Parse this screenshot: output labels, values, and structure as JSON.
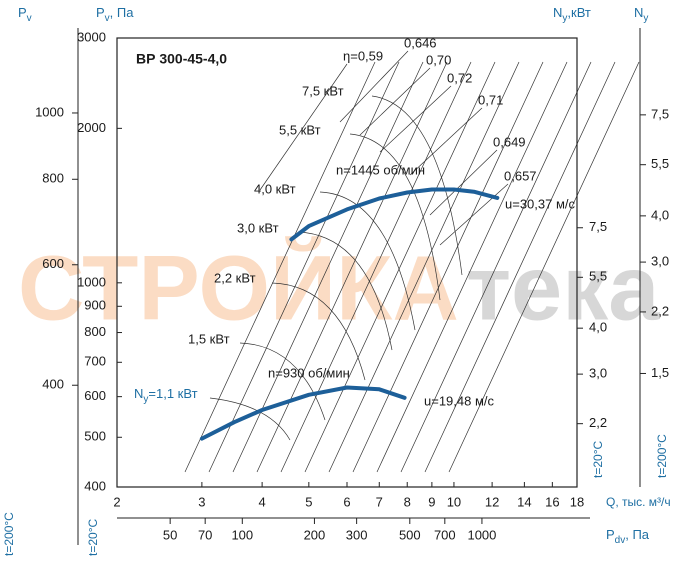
{
  "chart_data": {
    "type": "fan-curve",
    "title": "ВР 300-45-4,0",
    "log_x": true,
    "log_y": true,
    "x_label": "Q, тыс. м³/ч",
    "y_label": {
      "base": "P",
      "sub": "v",
      "rest": ", Па"
    },
    "xlim": [
      2,
      18
    ],
    "xticks": [
      2,
      3,
      4,
      5,
      6,
      7,
      8,
      9,
      10,
      12,
      14,
      16,
      18
    ],
    "ylim": [
      400,
      3000
    ],
    "yticks": [
      400,
      500,
      600,
      700,
      800,
      900,
      1000,
      2000,
      3000
    ],
    "series": [
      {
        "name": "n=1445 об/мин",
        "color": "#1d5f99",
        "speed_label": "u=30,37 м/с",
        "x": [
          4.6,
          5,
          6,
          7,
          8,
          9,
          10,
          11,
          12.3
        ],
        "values": [
          1215,
          1290,
          1390,
          1460,
          1500,
          1520,
          1520,
          1505,
          1464
        ]
      },
      {
        "name": "n=930 об/мин",
        "color": "#1d5f99",
        "speed_label": "u=19,48 м/с",
        "x": [
          3.0,
          3.5,
          4,
          5,
          6,
          7,
          7.9
        ],
        "values": [
          497,
          535,
          565,
          605,
          625,
          620,
          597
        ]
      }
    ],
    "efficiency_labels": [
      "η=0,59",
      "0,646",
      "0,70",
      "0,72",
      "0,71",
      "0,649",
      "0,657"
    ],
    "power_labels": [
      "7,5 кВт",
      "5,5 кВт",
      "4,0 кВт",
      "3,0 кВт",
      "2,2 кВт",
      "1,5 кВт"
    ],
    "power_label_min": {
      "base": "N",
      "sub": "y",
      "rest": "=1,1 кВт"
    },
    "temperature_labels": {
      "t20": "t=20°C",
      "t200": "t=200°C"
    },
    "pv200_axis": {
      "label": {
        "base": "P",
        "sub": "v"
      },
      "lim": [
        284,
        1287
      ],
      "ticks": [
        400,
        600,
        800,
        1000
      ]
    },
    "ny20_axis": {
      "label": {
        "base": "N",
        "sub": "y",
        "rest": ",кВт"
      },
      "lim": [
        1.48,
        24.6
      ],
      "ticks": [
        {
          "value": 2.2,
          "label": "2,2"
        },
        {
          "value": 3.0,
          "label": "3,0"
        },
        {
          "value": 4.0,
          "label": "4,0"
        },
        {
          "value": 5.5,
          "label": "5,5"
        },
        {
          "value": 7.5,
          "label": "7,5"
        }
      ]
    },
    "ny200_axis": {
      "label": {
        "base": "N",
        "sub": "y"
      },
      "lim": [
        0.74,
        12.1
      ],
      "ticks": [
        {
          "value": 1.5,
          "label": "1,5"
        },
        {
          "value": 2.2,
          "label": "2,2"
        },
        {
          "value": 3.0,
          "label": "3,0"
        },
        {
          "value": 4.0,
          "label": "4,0"
        },
        {
          "value": 5.5,
          "label": "5,5"
        },
        {
          "value": 7.5,
          "label": "7,5"
        }
      ]
    },
    "pdv_axis": {
      "label": {
        "base": "P",
        "sub": "dv",
        "rest": ", Па"
      },
      "lim": [
        30,
        2493
      ],
      "ticks": [
        50,
        70,
        100,
        200,
        300,
        500,
        700,
        1000
      ]
    },
    "watermark": [
      "СТРОЙКА",
      "тека"
    ]
  }
}
